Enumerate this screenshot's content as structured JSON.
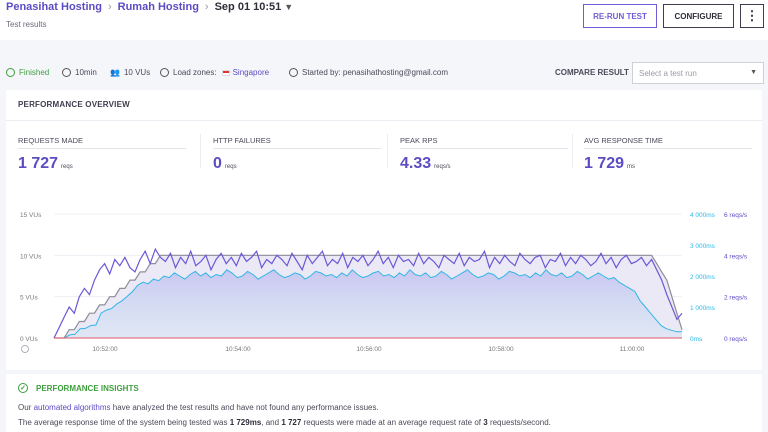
{
  "header": {
    "breadcrumb": [
      {
        "label": "Penasihat Hosting"
      },
      {
        "label": "Rumah Hosting"
      },
      {
        "label": "Sep 01 10:51"
      }
    ],
    "subtitle": "Test results",
    "buttons": {
      "rerun": "RE-RUN TEST",
      "configure": "CONFIGURE",
      "more": "⋮"
    }
  },
  "status": {
    "state": "Finished",
    "duration": "10min",
    "vus": "10 VUs",
    "load_zones_label": "Load zones:",
    "load_zone": "Singapore",
    "started_by": "Started by: penasihathosting@gmail.com",
    "compare_label": "COMPARE RESULT",
    "compare_placeholder": "Select a test run"
  },
  "overview": {
    "title": "PERFORMANCE OVERVIEW",
    "stats": [
      {
        "label": "REQUESTS MADE",
        "value": "1 727",
        "unit": "reqs"
      },
      {
        "label": "HTTP FAILURES",
        "value": "0",
        "unit": "reqs"
      },
      {
        "label": "PEAK RPS",
        "value": "4.33",
        "unit": "reqs/s"
      },
      {
        "label": "AVG RESPONSE TIME",
        "value": "1 729",
        "unit": "ms"
      }
    ]
  },
  "chart_data": {
    "type": "line",
    "x_ticks": [
      "10:52:00",
      "10:54:00",
      "10:56:00",
      "10:58:00",
      "11:00:00"
    ],
    "y_left": {
      "ticks": [
        "0 VUs",
        "5 VUs",
        "10 VUs",
        "15 VUs"
      ],
      "range": [
        0,
        15
      ]
    },
    "y_right_ms": {
      "ticks": [
        "0ms",
        "1 000ms",
        "2 000ms",
        "3 000ms",
        "4 000ms"
      ],
      "range": [
        0,
        4000
      ]
    },
    "y_right_rps": {
      "ticks": [
        "0 reqs/s",
        "2 reqs/s",
        "4 reqs/s",
        "6 reqs/s"
      ],
      "range": [
        0,
        6
      ]
    },
    "vus_series": [
      0,
      0,
      0,
      1,
      1,
      2,
      2,
      3,
      3,
      4,
      4,
      5,
      5,
      6,
      6,
      7,
      7,
      8,
      8,
      9,
      9,
      10,
      10,
      10,
      10,
      10,
      10,
      10,
      10,
      10,
      10,
      10,
      10,
      10,
      10,
      10,
      10,
      10,
      10,
      10,
      10,
      10,
      10,
      10,
      10,
      10,
      10,
      10,
      10,
      10,
      10,
      10,
      10,
      10,
      10,
      10,
      10,
      10,
      10,
      10,
      10,
      10,
      10,
      10,
      10,
      10,
      10,
      10,
      10,
      10,
      10,
      10,
      10,
      10,
      10,
      10,
      10,
      10,
      10,
      10,
      10,
      10,
      10,
      10,
      10,
      10,
      10,
      10,
      10,
      10,
      10,
      10,
      10,
      10,
      10,
      10,
      10,
      10,
      10,
      10,
      10,
      10,
      10,
      10,
      10,
      10,
      10,
      10,
      10,
      10,
      10,
      10,
      10,
      10,
      10,
      10,
      10,
      10,
      10,
      9,
      8,
      7,
      5,
      3,
      1
    ],
    "rps_series": [
      0,
      0.5,
      1,
      1.5,
      1.2,
      2,
      2.4,
      2.1,
      2.8,
      3.3,
      3.6,
      3.1,
      3.8,
      3.5,
      3.9,
      3.4,
      3.2,
      3.8,
      4.2,
      3.6,
      4.3,
      3.9,
      3.7,
      4.1,
      3.4,
      3.9,
      3.6,
      4.2,
      3.5,
      3.7,
      4.0,
      3.3,
      3.8,
      4.1,
      3.6,
      3.9,
      3.5,
      4.1,
      3.7,
      3.9,
      4.2,
      3.4,
      3.8,
      3.6,
      4.0,
      3.8,
      3.5,
      4.1,
      3.7,
      3.3,
      4.0,
      3.6,
      3.9,
      4.2,
      3.5,
      3.8,
      3.6,
      4.1,
      3.4,
      3.9,
      3.7,
      4.0,
      3.5,
      3.8,
      4.2,
      3.6,
      3.9,
      3.4,
      4.0,
      3.7,
      3.8,
      3.5,
      4.1,
      3.6,
      3.9,
      3.7,
      3.4,
      4.0,
      3.8,
      3.6,
      4.1,
      3.5,
      3.9,
      3.7,
      3.8,
      4.2,
      3.4,
      3.9,
      3.6,
      4.0,
      3.7,
      3.5,
      4.1,
      3.8,
      3.6,
      3.9,
      4.0,
      3.4,
      3.8,
      3.7,
      4.1,
      3.5,
      3.9,
      3.6,
      4.0,
      3.8,
      3.5,
      3.7,
      4.1,
      3.6,
      3.9,
      3.4,
      3.8,
      4.0,
      3.6,
      3.7,
      3.9,
      3.5,
      3.8,
      3.3,
      2.8,
      2.1,
      1.5,
      0.9,
      1.2
    ],
    "resp_series": [
      0,
      0,
      0,
      100,
      120,
      300,
      310,
      400,
      420,
      800,
      900,
      950,
      1100,
      1200,
      1350,
      1500,
      1700,
      1800,
      1750,
      1900,
      1850,
      2000,
      1950,
      2100,
      2000,
      1900,
      2050,
      2150,
      2000,
      2100,
      1950,
      2050,
      2000,
      2200,
      2100,
      1950,
      2000,
      2150,
      2050,
      1900,
      2000,
      2100,
      2200,
      2050,
      1950,
      2000,
      2100,
      2050,
      1900,
      2000,
      2150,
      2100,
      2000,
      2050,
      1950,
      2100,
      2000,
      2200,
      2050,
      1950,
      2000,
      2100,
      2150,
      2000,
      2050,
      1950,
      2100,
      2000,
      2200,
      2050,
      2000,
      2100,
      1950,
      2000,
      2150,
      2050,
      1900,
      2000,
      2100,
      2200,
      2050,
      1950,
      2000,
      2100,
      2050,
      1900,
      2000,
      2150,
      2100,
      2000,
      2050,
      1950,
      2100,
      2000,
      2200,
      2050,
      2000,
      2100,
      1950,
      2000,
      2150,
      2050,
      1900,
      2000,
      2100,
      2000,
      1900,
      1950,
      1800,
      1700,
      1600,
      1500,
      1200,
      1000,
      800,
      600,
      400,
      300,
      250,
      200,
      200
    ],
    "grid": true,
    "legend": "none"
  },
  "insights": {
    "title": "PERFORMANCE INSIGHTS",
    "line1_pre": "Our",
    "line1_link": "automated algorithms",
    "line1_post": "have analyzed the test results and have not found any performance issues.",
    "line2_pre": "The average response time of the system being tested was",
    "line2_ms": "1 729ms",
    "line2_mid": ", and",
    "line2_reqs": "1 727",
    "line2_mid2": "requests were made at an average request rate of",
    "line2_rate": "3",
    "line2_post": "requests/second."
  },
  "colors": {
    "accent": "#5b4cc4",
    "green": "#3e9e3e",
    "cyan": "#30b7e6",
    "gray_line": "#8d8d99"
  }
}
